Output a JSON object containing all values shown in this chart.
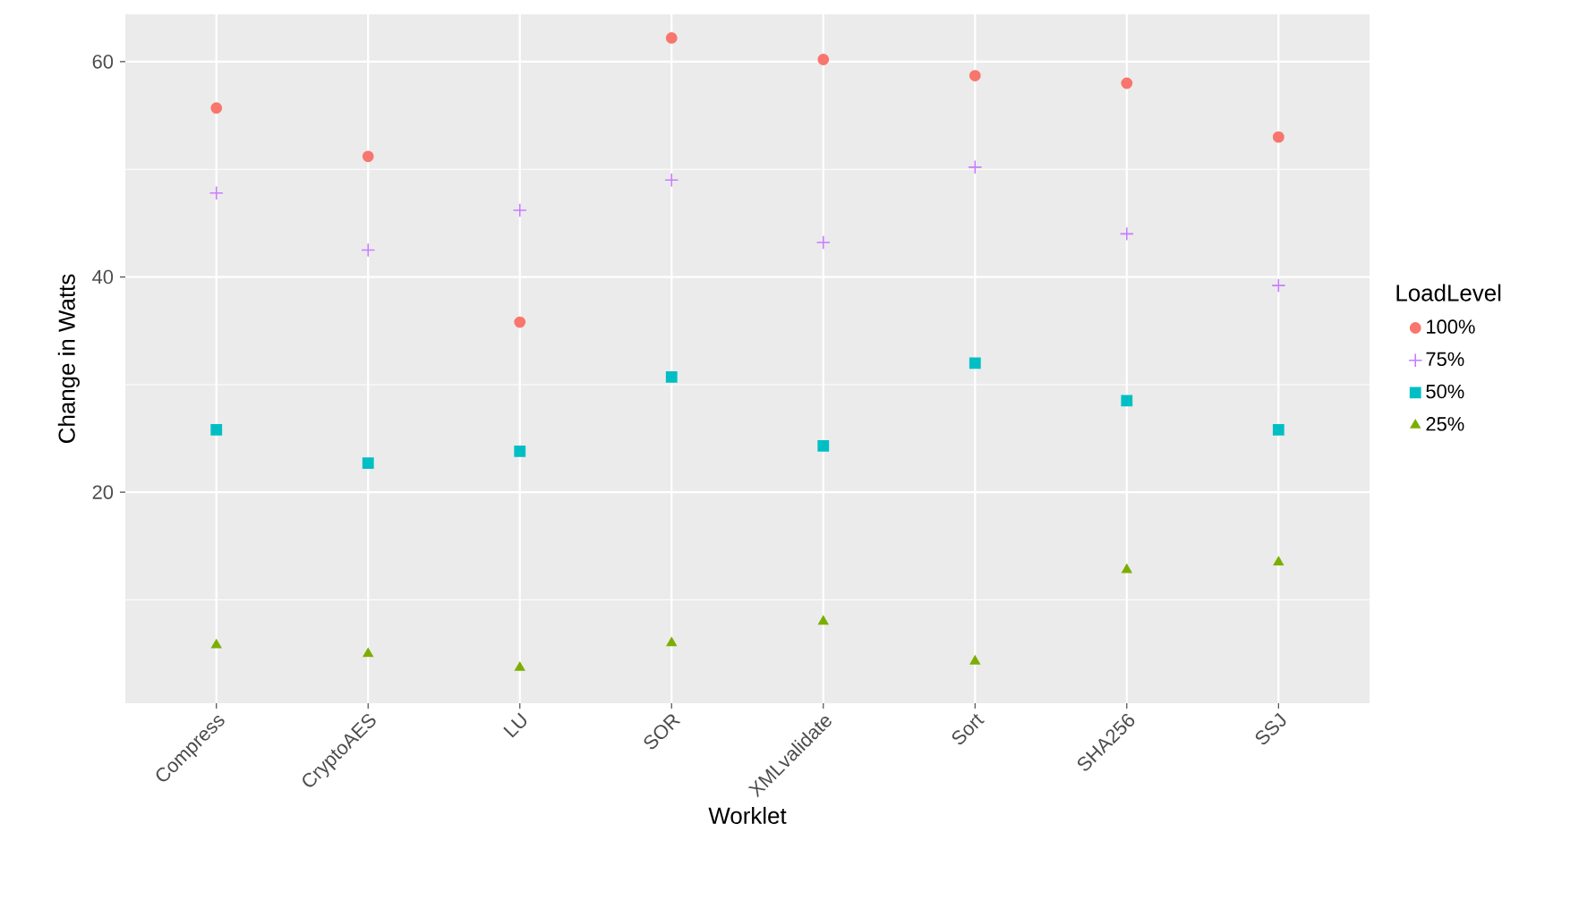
{
  "chart_data": {
    "type": "scatter",
    "xlabel": "Worklet",
    "ylabel": "Change in Watts",
    "legend_title": "LoadLevel",
    "categories": [
      "Compress",
      "CryptoAES",
      "LU",
      "SOR",
      "XMLvalidate",
      "Sort",
      "SHA256",
      "SSJ"
    ],
    "series": [
      {
        "name": "100%",
        "color": "#f8766d",
        "marker": "circle",
        "values": [
          55.7,
          51.2,
          35.8,
          62.2,
          60.2,
          58.7,
          58.0,
          53.0
        ]
      },
      {
        "name": "75%",
        "color": "#c77cff",
        "marker": "cross",
        "values": [
          47.8,
          42.5,
          46.2,
          49.0,
          43.2,
          50.2,
          44.0,
          39.2
        ]
      },
      {
        "name": "50%",
        "color": "#00bfc4",
        "marker": "square",
        "values": [
          25.8,
          22.7,
          23.8,
          30.7,
          24.3,
          32.0,
          28.5,
          25.8
        ]
      },
      {
        "name": "25%",
        "color": "#7cae00",
        "marker": "triangle",
        "values": [
          5.8,
          5.0,
          3.7,
          6.0,
          8.0,
          4.3,
          12.8,
          13.5
        ]
      }
    ],
    "ylim": [
      0.4,
      64.4
    ],
    "yticks": [
      20,
      40,
      60
    ],
    "grid": true,
    "legend": "right"
  }
}
